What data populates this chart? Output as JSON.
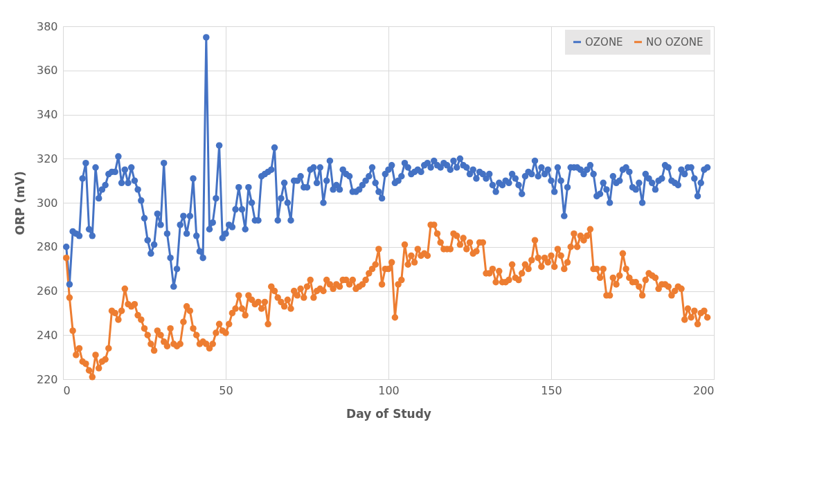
{
  "chart_data": {
    "type": "line",
    "xlabel": "Day of Study",
    "ylabel": "ORP (mV)",
    "x": [
      1,
      2,
      3,
      4,
      5,
      6,
      7,
      8,
      9,
      10,
      11,
      12,
      13,
      14,
      15,
      16,
      17,
      18,
      19,
      20,
      21,
      22,
      23,
      24,
      25,
      26,
      27,
      28,
      29,
      30,
      31,
      32,
      33,
      34,
      35,
      36,
      37,
      38,
      39,
      40,
      41,
      42,
      43,
      44,
      45,
      46,
      47,
      48,
      49,
      50,
      51,
      52,
      53,
      54,
      55,
      56,
      57,
      58,
      59,
      60,
      61,
      62,
      63,
      64,
      65,
      66,
      67,
      68,
      69,
      70,
      71,
      72,
      73,
      74,
      75,
      76,
      77,
      78,
      79,
      80,
      81,
      82,
      83,
      84,
      85,
      86,
      87,
      88,
      89,
      90,
      91,
      92,
      93,
      94,
      95,
      96,
      97,
      98,
      99,
      100,
      101,
      102,
      103,
      104,
      105,
      106,
      107,
      108,
      109,
      110,
      111,
      112,
      113,
      114,
      115,
      116,
      117,
      118,
      119,
      120,
      121,
      122,
      123,
      124,
      125,
      126,
      127,
      128,
      129,
      130,
      131,
      132,
      133,
      134,
      135,
      136,
      137,
      138,
      139,
      140,
      141,
      142,
      143,
      144,
      145,
      146,
      147,
      148,
      149,
      150,
      151,
      152,
      153,
      154,
      155,
      156,
      157,
      158,
      159,
      160,
      161,
      162,
      163,
      164,
      165,
      166,
      167,
      168,
      169,
      170,
      171,
      172,
      173,
      174,
      175,
      176,
      177,
      178,
      179,
      180,
      181,
      182,
      183,
      184,
      185,
      186,
      187,
      188,
      189,
      190,
      191,
      192,
      193,
      194,
      195,
      196,
      197,
      198
    ],
    "series": [
      {
        "name": "OZONE",
        "color": "#4472c4",
        "values": [
          280,
          263,
          287,
          286,
          285,
          311,
          318,
          288,
          285,
          316,
          302,
          306,
          308,
          313,
          314,
          314,
          321,
          309,
          315,
          309,
          316,
          310,
          306,
          301,
          293,
          283,
          277,
          281,
          295,
          290,
          318,
          286,
          275,
          262,
          270,
          290,
          294,
          286,
          294,
          311,
          285,
          278,
          275,
          375,
          288,
          291,
          302,
          326,
          284,
          286,
          290,
          289,
          297,
          307,
          297,
          288,
          307,
          300,
          292,
          292,
          312,
          313,
          314,
          315,
          325,
          292,
          302,
          309,
          300,
          292,
          310,
          310,
          312,
          307,
          307,
          315,
          316,
          309,
          316,
          300,
          310,
          319,
          306,
          308,
          306,
          315,
          313,
          312,
          305,
          305,
          306,
          308,
          310,
          312,
          316,
          309,
          305,
          302,
          313,
          315,
          317,
          309,
          310,
          312,
          318,
          316,
          313,
          314,
          315,
          314,
          317,
          318,
          316,
          319,
          317,
          316,
          318,
          317,
          315,
          319,
          316,
          320,
          317,
          316,
          313,
          315,
          311,
          314,
          313,
          311,
          313,
          308,
          305,
          309,
          308,
          310,
          309,
          313,
          311,
          308,
          304,
          312,
          314,
          313,
          319,
          312,
          316,
          313,
          315,
          310,
          305,
          316,
          310,
          294,
          307,
          316,
          316,
          316,
          315,
          313,
          315,
          317,
          313,
          303,
          304,
          309,
          306,
          300,
          312,
          309,
          310,
          315,
          316,
          314,
          307,
          306,
          309,
          300,
          313,
          311,
          309,
          306,
          310,
          311,
          317,
          316,
          310,
          309,
          308,
          315,
          313,
          316,
          316,
          311,
          303,
          309,
          315,
          316
        ]
      },
      {
        "name": "NO OZONE",
        "color": "#ed7d31",
        "values": [
          275,
          257,
          242,
          231,
          234,
          228,
          227,
          224,
          221,
          231,
          225,
          228,
          229,
          234,
          251,
          250,
          247,
          251,
          261,
          254,
          253,
          254,
          249,
          247,
          243,
          240,
          236,
          233,
          242,
          240,
          237,
          235,
          243,
          236,
          235,
          236,
          246,
          253,
          251,
          243,
          240,
          236,
          237,
          236,
          234,
          236,
          241,
          245,
          242,
          241,
          245,
          250,
          252,
          258,
          252,
          249,
          258,
          256,
          254,
          255,
          252,
          255,
          245,
          262,
          260,
          257,
          255,
          253,
          256,
          252,
          260,
          258,
          261,
          257,
          262,
          265,
          257,
          260,
          261,
          260,
          265,
          263,
          261,
          263,
          262,
          265,
          265,
          263,
          265,
          261,
          262,
          263,
          265,
          268,
          270,
          272,
          279,
          263,
          270,
          270,
          273,
          248,
          263,
          265,
          281,
          272,
          276,
          273,
          279,
          276,
          277,
          276,
          290,
          290,
          286,
          282,
          279,
          279,
          279,
          286,
          285,
          281,
          284,
          279,
          282,
          277,
          278,
          282,
          282,
          268,
          268,
          270,
          264,
          269,
          264,
          264,
          265,
          272,
          266,
          265,
          268,
          272,
          270,
          274,
          283,
          275,
          271,
          275,
          273,
          276,
          271,
          279,
          276,
          270,
          273,
          280,
          286,
          280,
          285,
          283,
          285,
          288,
          270,
          270,
          266,
          270,
          258,
          258,
          266,
          263,
          267,
          277,
          270,
          266,
          264,
          264,
          262,
          258,
          265,
          268,
          267,
          266,
          261,
          263,
          263,
          262,
          258,
          260,
          262,
          261,
          247,
          252,
          248,
          251,
          245,
          250,
          251,
          248
        ]
      }
    ],
    "xlim": [
      0,
      200
    ],
    "xticks": [
      0,
      50,
      100,
      150,
      200
    ],
    "ylim": [
      220,
      380
    ],
    "yticks": [
      220,
      240,
      260,
      280,
      300,
      320,
      340,
      360,
      380
    ],
    "grid": true,
    "legend": "top right",
    "marker": "circle",
    "line_style": "solid"
  }
}
